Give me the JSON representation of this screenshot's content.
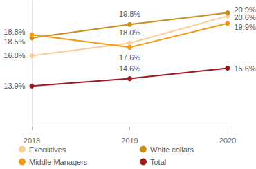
{
  "chart_data": {
    "type": "line",
    "categories": [
      "2018",
      "2019",
      "2020"
    ],
    "series": [
      {
        "name": "Executives",
        "color": "#f9cf93",
        "values": [
          16.8,
          18.0,
          20.6
        ],
        "value_labels": [
          "16.8%",
          "18.0%",
          "20.6%"
        ]
      },
      {
        "name": "White collars",
        "color": "#c98e1b",
        "values": [
          18.5,
          19.8,
          20.9
        ],
        "value_labels": [
          "18.5%",
          "19.8%",
          "20.9%"
        ]
      },
      {
        "name": "Middle Managers",
        "color": "#f29a12",
        "values": [
          18.8,
          17.6,
          19.9
        ],
        "value_labels": [
          "18.8%",
          "17.6%",
          "19.9%"
        ]
      },
      {
        "name": "Total",
        "color": "#9b1b1f",
        "values": [
          13.9,
          14.6,
          15.6
        ],
        "value_labels": [
          "13.9%",
          "14.6%",
          "15.6%"
        ]
      }
    ],
    "ylim": [
      10,
      22
    ],
    "tick_labels": "x",
    "data_labels": true,
    "marker": "circle",
    "legend": "bottom"
  }
}
